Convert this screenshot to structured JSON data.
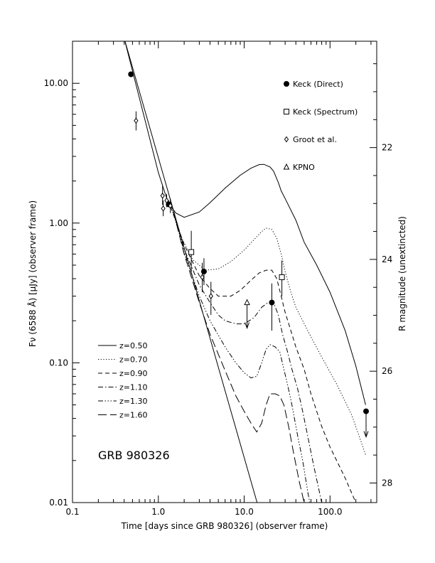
{
  "chart_data": {
    "type": "scatter",
    "title": "",
    "xlabel": "Time [days since GRB 980326] (observer frame)",
    "ylabel": "Fν (6588 Å) [μJy] (observer frame)",
    "y2label": "R magnitude (unextincted)",
    "xscale": "log",
    "yscale": "log",
    "xlim": [
      0.1,
      350
    ],
    "ylim": [
      0.01,
      20
    ],
    "x_ticks": [
      {
        "v": 0.1,
        "label": "0.1"
      },
      {
        "v": 1,
        "label": "1.0"
      },
      {
        "v": 10,
        "label": "10.0"
      },
      {
        "v": 100,
        "label": "100.0"
      }
    ],
    "y_ticks": [
      {
        "v": 0.01,
        "label": "0.01"
      },
      {
        "v": 0.1,
        "label": "0.10"
      },
      {
        "v": 1,
        "label": "1.00"
      },
      {
        "v": 10,
        "label": "10.00"
      }
    ],
    "mag_ticks": [
      22,
      24,
      26,
      28
    ],
    "annotation": "GRB 980326",
    "points": [
      {
        "series": "Keck (Direct)",
        "x": 0.48,
        "y": 11.6,
        "err": [
          11.6,
          11.6
        ]
      },
      {
        "series": "Keck (Direct)",
        "x": 1.32,
        "y": 1.36,
        "err": [
          1.3,
          1.45
        ]
      },
      {
        "series": "Keck (Direct)",
        "x": 3.4,
        "y": 0.45,
        "err": [
          0.36,
          0.56
        ]
      },
      {
        "series": "Keck (Direct)",
        "x": 21,
        "y": 0.27,
        "err": [
          0.17,
          0.37
        ]
      },
      {
        "series": "Keck (Direct)",
        "x": 263,
        "y": 0.045,
        "upper": true
      },
      {
        "series": "Keck (Spectrum)",
        "x": 2.42,
        "y": 0.62,
        "err": [
          0.45,
          0.88
        ]
      },
      {
        "series": "Keck (Spectrum)",
        "x": 27.5,
        "y": 0.41,
        "err": [
          0.3,
          0.54
        ]
      },
      {
        "series": "Groot et al.",
        "x": 0.55,
        "y": 5.4,
        "err": [
          4.6,
          6.3
        ]
      },
      {
        "series": "Groot et al.",
        "x": 1.12,
        "y": 1.57,
        "err": [
          1.35,
          1.85
        ]
      },
      {
        "series": "Groot et al.",
        "x": 1.14,
        "y": 1.27,
        "err": [
          1.12,
          1.45
        ]
      },
      {
        "series": "Groot et al.",
        "x": 1.25,
        "y": 1.45,
        "err": [
          1.3,
          1.62
        ]
      },
      {
        "series": "Groot et al.",
        "x": 1.38,
        "y": 1.33,
        "err": [
          1.18,
          1.5
        ]
      },
      {
        "series": "Groot et al.",
        "x": 3.25,
        "y": 0.41,
        "err": [
          0.32,
          0.52
        ]
      },
      {
        "series": "Groot et al.",
        "x": 4.1,
        "y": 0.3,
        "err": [
          0.22,
          0.38
        ]
      },
      {
        "series": "KPNO",
        "x": 10.8,
        "y": 0.27,
        "upper": true
      }
    ],
    "legend_points": [
      {
        "label": "Keck (Direct)",
        "marker": "filled-circle"
      },
      {
        "label": "Keck (Spectrum)",
        "marker": "open-square"
      },
      {
        "label": "Groot et al.",
        "marker": "open-diamond"
      },
      {
        "label": "KPNO",
        "marker": "open-triangle"
      }
    ],
    "legend_lines": [
      {
        "label": "z=0.50",
        "dash": "solid"
      },
      {
        "label": "z=0.70",
        "dash": "dotted"
      },
      {
        "label": "z=0.90",
        "dash": "dashed"
      },
      {
        "label": "z=1.10",
        "dash": "dashdot"
      },
      {
        "label": "z=1.30",
        "dash": "dashdotdotdot"
      },
      {
        "label": "z=1.60",
        "dash": "longdash"
      }
    ],
    "curves": [
      {
        "name": "powerlaw",
        "dash": "solid",
        "x": [
          0.4,
          15
        ],
        "y": [
          21,
          0.0088
        ]
      },
      {
        "name": "z=0.50",
        "dash": "solid",
        "x": [
          0.4,
          1,
          1.3,
          1.6,
          2,
          3,
          4,
          6,
          9,
          12,
          15,
          17,
          20,
          22,
          25,
          27,
          30,
          40,
          50,
          70,
          100,
          150,
          200,
          260
        ],
        "y": [
          21,
          2.3,
          1.4,
          1.18,
          1.1,
          1.2,
          1.4,
          1.78,
          2.2,
          2.47,
          2.62,
          2.63,
          2.52,
          2.35,
          1.95,
          1.7,
          1.5,
          1.05,
          0.73,
          0.5,
          0.32,
          0.17,
          0.095,
          0.05
        ]
      },
      {
        "name": "z=0.70",
        "dash": "dotted",
        "x": [
          1.4,
          1.8,
          2.5,
          3.5,
          5,
          7,
          10,
          13,
          16,
          18,
          21,
          24,
          27,
          30,
          35,
          40,
          55,
          80,
          120,
          180,
          260
        ],
        "y": [
          1.3,
          0.82,
          0.55,
          0.46,
          0.47,
          0.53,
          0.64,
          0.76,
          0.87,
          0.92,
          0.9,
          0.78,
          0.6,
          0.45,
          0.32,
          0.25,
          0.17,
          0.11,
          0.07,
          0.042,
          0.022
        ]
      },
      {
        "name": "z=0.90",
        "dash": "dashed",
        "x": [
          1.4,
          2,
          3,
          4,
          5,
          7,
          9,
          12,
          15,
          18,
          21,
          24,
          27,
          30,
          35,
          40,
          50,
          60,
          80,
          100,
          150,
          200
        ],
        "y": [
          1.3,
          0.7,
          0.42,
          0.34,
          0.3,
          0.3,
          0.33,
          0.39,
          0.44,
          0.46,
          0.46,
          0.4,
          0.3,
          0.23,
          0.17,
          0.13,
          0.09,
          0.06,
          0.035,
          0.025,
          0.015,
          0.01
        ]
      },
      {
        "name": "z=1.10",
        "dash": "dashdot",
        "x": [
          1.5,
          2,
          3,
          4,
          5,
          6,
          8,
          10,
          13,
          16,
          19,
          22,
          25,
          28,
          32,
          36,
          42,
          48,
          55,
          65,
          80
        ],
        "y": [
          1.2,
          0.65,
          0.36,
          0.27,
          0.22,
          0.2,
          0.19,
          0.19,
          0.21,
          0.25,
          0.27,
          0.27,
          0.22,
          0.16,
          0.12,
          0.09,
          0.065,
          0.045,
          0.03,
          0.018,
          0.01
        ]
      },
      {
        "name": "z=1.30",
        "dash": "dashdotdotdot",
        "x": [
          1.5,
          2,
          3,
          4,
          6,
          8,
          10,
          12,
          14,
          16,
          18,
          20,
          23,
          26,
          29,
          32,
          36,
          42,
          48,
          55,
          60
        ],
        "y": [
          1.2,
          0.62,
          0.3,
          0.2,
          0.13,
          0.1,
          0.085,
          0.078,
          0.08,
          0.1,
          0.125,
          0.135,
          0.13,
          0.12,
          0.09,
          0.07,
          0.05,
          0.03,
          0.02,
          0.012,
          0.009
        ]
      },
      {
        "name": "z=1.60",
        "dash": "longdash",
        "x": [
          1.5,
          2,
          3,
          4,
          6,
          8,
          10,
          12,
          14,
          16,
          18,
          20,
          23,
          26,
          29,
          33,
          38,
          44,
          50,
          58
        ],
        "y": [
          1.2,
          0.6,
          0.27,
          0.16,
          0.088,
          0.058,
          0.045,
          0.037,
          0.032,
          0.037,
          0.05,
          0.06,
          0.06,
          0.058,
          0.05,
          0.035,
          0.022,
          0.014,
          0.01,
          0.008
        ]
      }
    ]
  }
}
